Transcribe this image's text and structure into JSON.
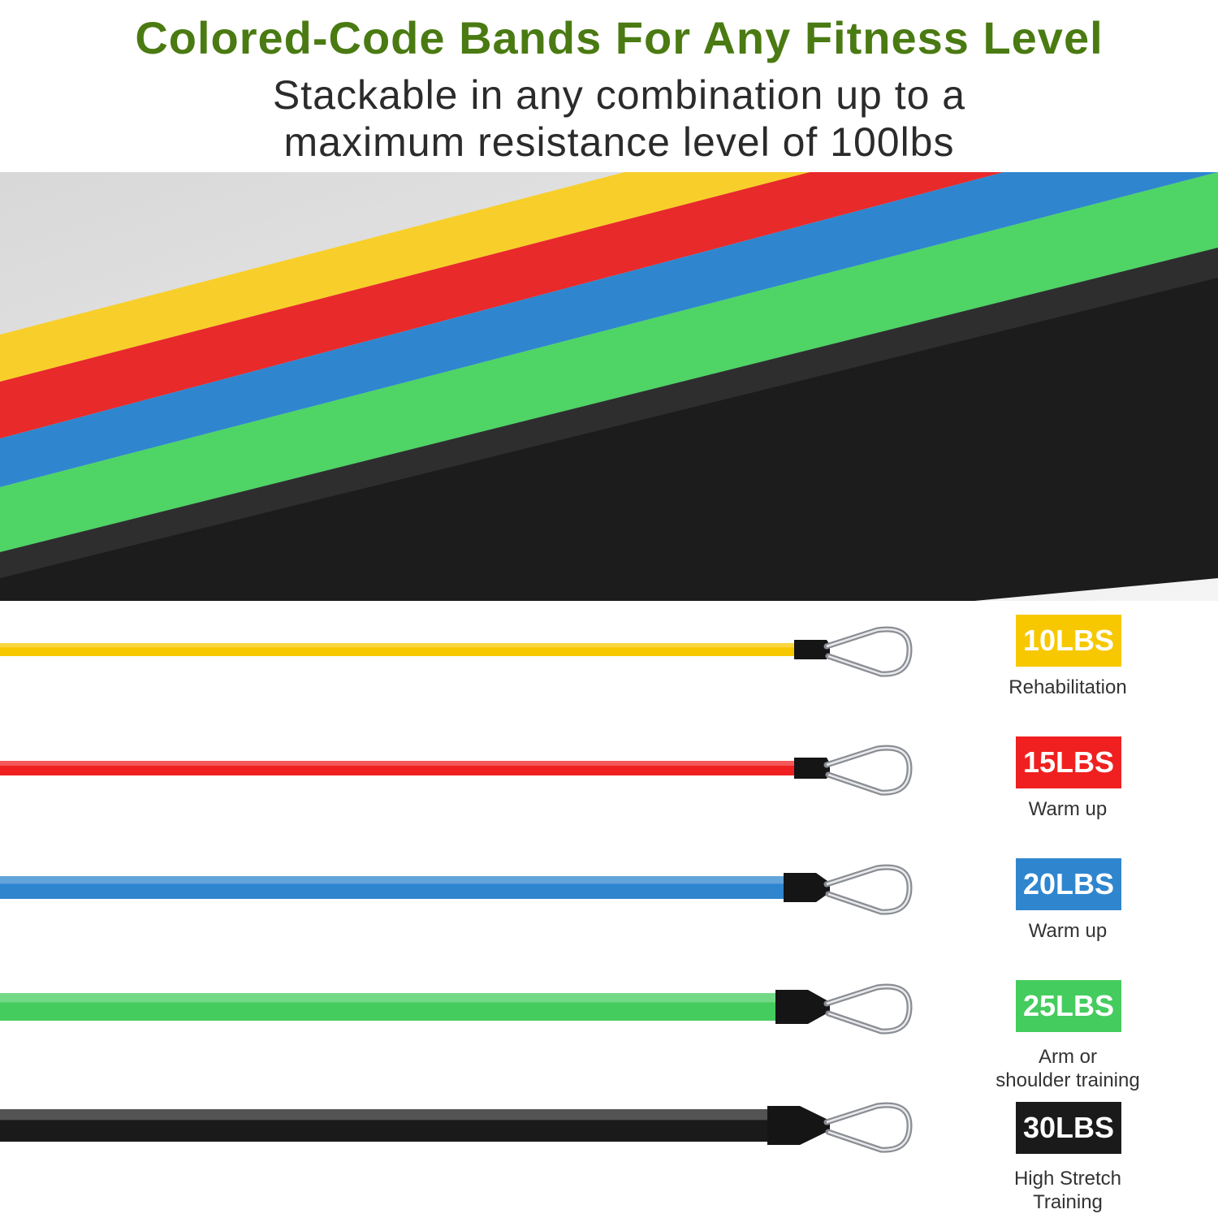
{
  "header": {
    "title": "Colored-Code Bands For Any Fitness Level",
    "subtitle_line1": "Stackable in any combination up to a",
    "subtitle_line2": "maximum resistance level of 100lbs"
  },
  "bands": [
    {
      "weight": "10LBS",
      "description": "Rehabilitation",
      "color": "#f7c800"
    },
    {
      "weight": "15LBS",
      "description": "Warm up",
      "color": "#f02020"
    },
    {
      "weight": "20LBS",
      "description": "Warm up",
      "color": "#2f86cf"
    },
    {
      "weight": "25LBS",
      "description": "Arm or shoulder training",
      "description_line1": "Arm or",
      "description_line2": "shoulder training",
      "color": "#45cc5e"
    },
    {
      "weight": "30LBS",
      "description": "High Stretch Training",
      "description_line1": "High Stretch",
      "description_line2": "Training",
      "color": "#1a1a1a"
    }
  ]
}
